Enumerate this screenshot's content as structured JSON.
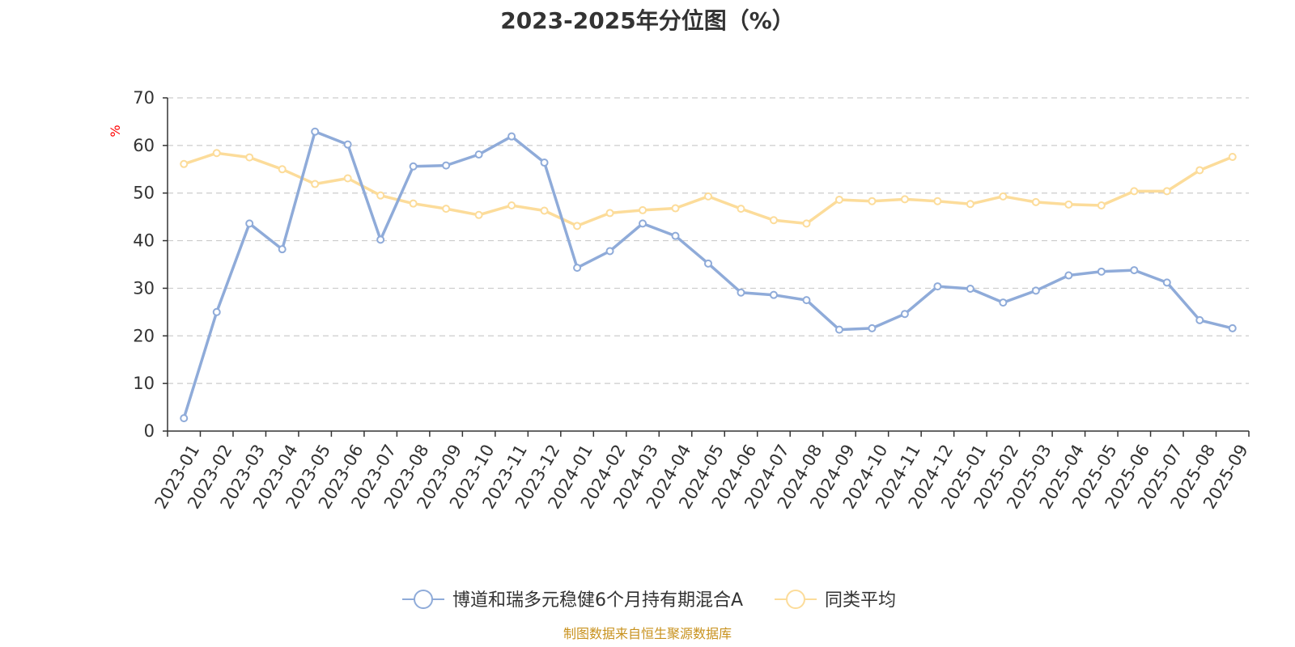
{
  "chart_data": {
    "type": "line",
    "title": "2023-2025年分位图（%）",
    "ylabel": "%",
    "xlabel": "",
    "ylim": [
      0,
      70
    ],
    "yticks": [
      0,
      10,
      20,
      30,
      40,
      50,
      60,
      70
    ],
    "grid": "horizontal-dashed",
    "legend_position": "bottom",
    "categories": [
      "2023-01",
      "2023-02",
      "2023-03",
      "2023-04",
      "2023-05",
      "2023-06",
      "2023-07",
      "2023-08",
      "2023-09",
      "2023-10",
      "2023-11",
      "2023-12",
      "2024-01",
      "2024-02",
      "2024-03",
      "2024-04",
      "2024-05",
      "2024-06",
      "2024-07",
      "2024-08",
      "2024-09",
      "2024-10",
      "2024-11",
      "2024-12",
      "2025-01",
      "2025-02",
      "2025-03",
      "2025-04",
      "2025-05",
      "2025-06",
      "2025-07",
      "2025-08",
      "2025-09"
    ],
    "series": [
      {
        "name": "博道和瑞多元稳健6个月持有期混合A",
        "color": "#8fabd9",
        "values": [
          2.7,
          25.0,
          43.6,
          38.2,
          62.9,
          60.2,
          40.2,
          55.6,
          55.8,
          58.1,
          61.9,
          56.4,
          34.3,
          37.8,
          43.6,
          41.0,
          35.2,
          29.1,
          28.6,
          27.5,
          21.3,
          21.6,
          24.6,
          30.4,
          29.9,
          27.0,
          29.5,
          32.7,
          33.5,
          33.8,
          31.2,
          23.3,
          21.6
        ]
      },
      {
        "name": "同类平均",
        "color": "#fcdc9a",
        "values": [
          56.1,
          58.4,
          57.5,
          55.0,
          51.9,
          53.1,
          49.5,
          47.8,
          46.7,
          45.4,
          47.4,
          46.3,
          43.1,
          45.8,
          46.4,
          46.8,
          49.3,
          46.7,
          44.3,
          43.6,
          48.6,
          48.3,
          48.7,
          48.3,
          47.7,
          49.3,
          48.1,
          47.6,
          47.4,
          50.4,
          50.4,
          54.8,
          57.6
        ]
      }
    ],
    "source": "制图数据来自恒生聚源数据库"
  }
}
